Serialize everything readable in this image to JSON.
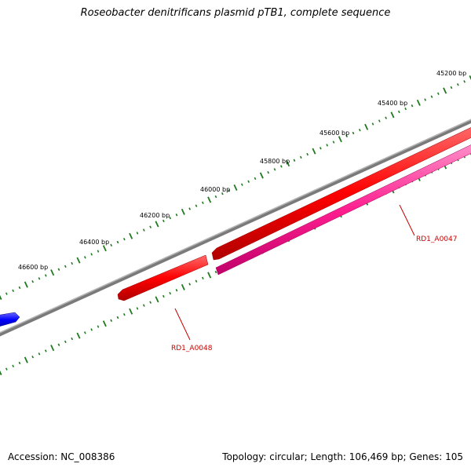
{
  "title": "Roseobacter denitrificans plasmid pTB1, complete sequence",
  "ticks": [
    {
      "label": "45200 bp"
    },
    {
      "label": "45400 bp"
    },
    {
      "label": "45600 bp"
    },
    {
      "label": "45800 bp"
    },
    {
      "label": "46000 bp"
    },
    {
      "label": "46200 bp"
    },
    {
      "label": "46400 bp"
    },
    {
      "label": "46600 bp"
    }
  ],
  "genes": [
    {
      "label": "RD1_A0047",
      "color": "#ff0000"
    },
    {
      "label": "RD1_A0048",
      "color": "#ff0000"
    },
    {
      "label": "",
      "color": "#0000ff"
    }
  ],
  "colors": {
    "backbone": "#7a7a7a",
    "tick": "#1f7a1f",
    "cds": "#ff1f8f",
    "gene": "#ff0000",
    "other_gene": "#0000ff"
  },
  "footer": {
    "accession": "Accession: NC_008386",
    "summary": "Topology: circular; Length: 106,469 bp; Genes: 105"
  }
}
